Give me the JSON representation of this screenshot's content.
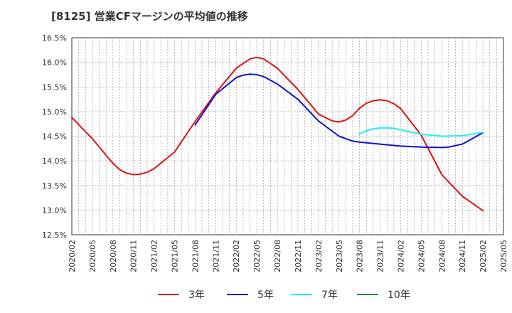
{
  "title": "[8125]  営業CFマージンの平均値の推移",
  "chart_data": {
    "type": "line",
    "title": "[8125]  営業CFマージンの平均値の推移",
    "xlabel": "",
    "ylabel": "",
    "ylim": [
      12.5,
      16.5
    ],
    "yticks": [
      "12.5%",
      "13.0%",
      "13.5%",
      "14.0%",
      "14.5%",
      "15.0%",
      "15.5%",
      "16.0%",
      "16.5%"
    ],
    "x_ticks": [
      "2020/02",
      "2020/05",
      "2020/08",
      "2020/11",
      "2021/02",
      "2021/05",
      "2021/08",
      "2021/11",
      "2022/02",
      "2022/05",
      "2022/08",
      "2022/11",
      "2023/02",
      "2023/05",
      "2023/08",
      "2023/11",
      "2024/02",
      "2024/05",
      "2024/08",
      "2024/11",
      "2025/02",
      "2025/05"
    ],
    "grid": true,
    "legend_position": "bottom",
    "series": [
      {
        "name": "3年",
        "color": "#dd1111",
        "points": [
          [
            "2020/02",
            14.88
          ],
          [
            "2020/05",
            14.45
          ],
          [
            "2020/08",
            13.95
          ],
          [
            "2020/09",
            13.82
          ],
          [
            "2020/10",
            13.75
          ],
          [
            "2020/11",
            13.72
          ],
          [
            "2020/12",
            13.73
          ],
          [
            "2021/01",
            13.77
          ],
          [
            "2021/02",
            13.84
          ],
          [
            "2021/05",
            14.18
          ],
          [
            "2021/08",
            14.8
          ],
          [
            "2021/11",
            15.38
          ],
          [
            "2022/02",
            15.88
          ],
          [
            "2022/04",
            16.07
          ],
          [
            "2022/05",
            16.1
          ],
          [
            "2022/06",
            16.07
          ],
          [
            "2022/08",
            15.88
          ],
          [
            "2022/11",
            15.45
          ],
          [
            "2023/02",
            14.95
          ],
          [
            "2023/04",
            14.81
          ],
          [
            "2023/05",
            14.79
          ],
          [
            "2023/06",
            14.83
          ],
          [
            "2023/07",
            14.92
          ],
          [
            "2023/08",
            15.07
          ],
          [
            "2023/09",
            15.17
          ],
          [
            "2023/10",
            15.22
          ],
          [
            "2023/11",
            15.24
          ],
          [
            "2023/12",
            15.22
          ],
          [
            "2024/01",
            15.16
          ],
          [
            "2024/02",
            15.06
          ],
          [
            "2024/05",
            14.52
          ],
          [
            "2024/08",
            13.72
          ],
          [
            "2024/11",
            13.28
          ],
          [
            "2025/02",
            12.99
          ]
        ]
      },
      {
        "name": "5年",
        "color": "#1111cc",
        "points": [
          [
            "2021/08",
            14.73
          ],
          [
            "2021/11",
            15.35
          ],
          [
            "2022/02",
            15.69
          ],
          [
            "2022/03",
            15.74
          ],
          [
            "2022/04",
            15.76
          ],
          [
            "2022/05",
            15.75
          ],
          [
            "2022/06",
            15.71
          ],
          [
            "2022/08",
            15.56
          ],
          [
            "2022/11",
            15.25
          ],
          [
            "2023/02",
            14.81
          ],
          [
            "2023/05",
            14.5
          ],
          [
            "2023/07",
            14.4
          ],
          [
            "2023/08",
            14.38
          ],
          [
            "2023/11",
            14.34
          ],
          [
            "2024/02",
            14.3
          ],
          [
            "2024/05",
            14.28
          ],
          [
            "2024/08",
            14.27
          ],
          [
            "2024/09",
            14.28
          ],
          [
            "2024/11",
            14.34
          ],
          [
            "2025/02",
            14.57
          ]
        ]
      },
      {
        "name": "7年",
        "color": "#22eeee",
        "points": [
          [
            "2023/08",
            14.55
          ],
          [
            "2023/09",
            14.61
          ],
          [
            "2023/10",
            14.65
          ],
          [
            "2023/11",
            14.67
          ],
          [
            "2023/12",
            14.67
          ],
          [
            "2024/01",
            14.66
          ],
          [
            "2024/02",
            14.63
          ],
          [
            "2024/05",
            14.54
          ],
          [
            "2024/08",
            14.5
          ],
          [
            "2024/11",
            14.51
          ],
          [
            "2025/02",
            14.58
          ]
        ]
      },
      {
        "name": "10年",
        "color": "#228822",
        "points": []
      }
    ]
  }
}
